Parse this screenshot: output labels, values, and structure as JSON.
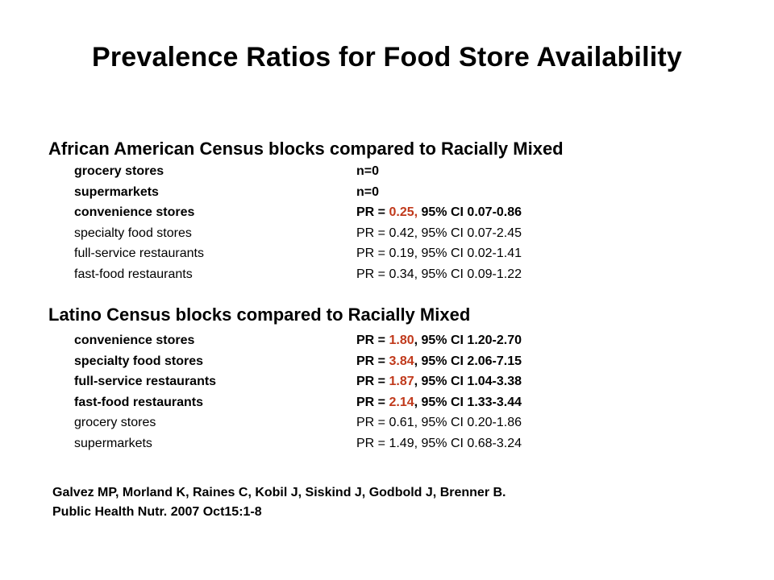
{
  "title": "Prevalence Ratios for Food Store Availability",
  "colors": {
    "highlight": "#c0391b",
    "text": "#000000",
    "background": "#ffffff"
  },
  "section1": {
    "heading": "African American Census blocks compared to Racially Mixed",
    "rows": [
      {
        "label": "grocery stores",
        "prefix": "n=0",
        "pr": "",
        "suffix": "",
        "bold": true
      },
      {
        "label": "supermarkets",
        "prefix": "n=0",
        "pr": "",
        "suffix": "",
        "bold": true
      },
      {
        "label": "convenience stores",
        "prefix": "PR = ",
        "pr": "0.25,",
        "suffix": " 95% CI 0.07-0.86",
        "bold": true
      },
      {
        "label": "specialty food stores",
        "prefix": "PR = 0.42, 95% CI 0.07-2.45",
        "pr": "",
        "suffix": "",
        "bold": false
      },
      {
        "label": "full-service restaurants",
        "prefix": "PR = 0.19, 95% CI 0.02-1.41",
        "pr": "",
        "suffix": "",
        "bold": false
      },
      {
        "label": "fast-food restaurants",
        "prefix": "PR = 0.34, 95% CI 0.09-1.22",
        "pr": "",
        "suffix": "",
        "bold": false
      }
    ]
  },
  "section2": {
    "heading": "Latino Census blocks compared to Racially Mixed",
    "rows": [
      {
        "label": "convenience stores",
        "prefix": "PR = ",
        "pr": "1.80",
        "suffix": ", 95% CI 1.20-2.70",
        "bold": true
      },
      {
        "label": "specialty food stores",
        "prefix": "PR = ",
        "pr": "3.84",
        "suffix": ", 95% CI 2.06-7.15",
        "bold": true
      },
      {
        "label": "full-service restaurants",
        "prefix": "PR = ",
        "pr": "1.87",
        "suffix": ", 95% CI 1.04-3.38",
        "bold": true
      },
      {
        "label": "fast-food restaurants",
        "prefix": "PR = ",
        "pr": "2.14",
        "suffix": ", 95% CI 1.33-3.44",
        "bold": true
      },
      {
        "label": "grocery stores",
        "prefix": "PR = 0.61, 95% CI 0.20-1.86",
        "pr": "",
        "suffix": "",
        "bold": false
      },
      {
        "label": "supermarkets",
        "prefix": "PR = 1.49, 95% CI 0.68-3.24",
        "pr": "",
        "suffix": "",
        "bold": false
      }
    ]
  },
  "citation": {
    "line1": "Galvez MP, Morland K, Raines C, Kobil J, Siskind J, Godbold J, Brenner B.",
    "line2": "Public Health Nutr. 2007 Oct15:1-8"
  }
}
